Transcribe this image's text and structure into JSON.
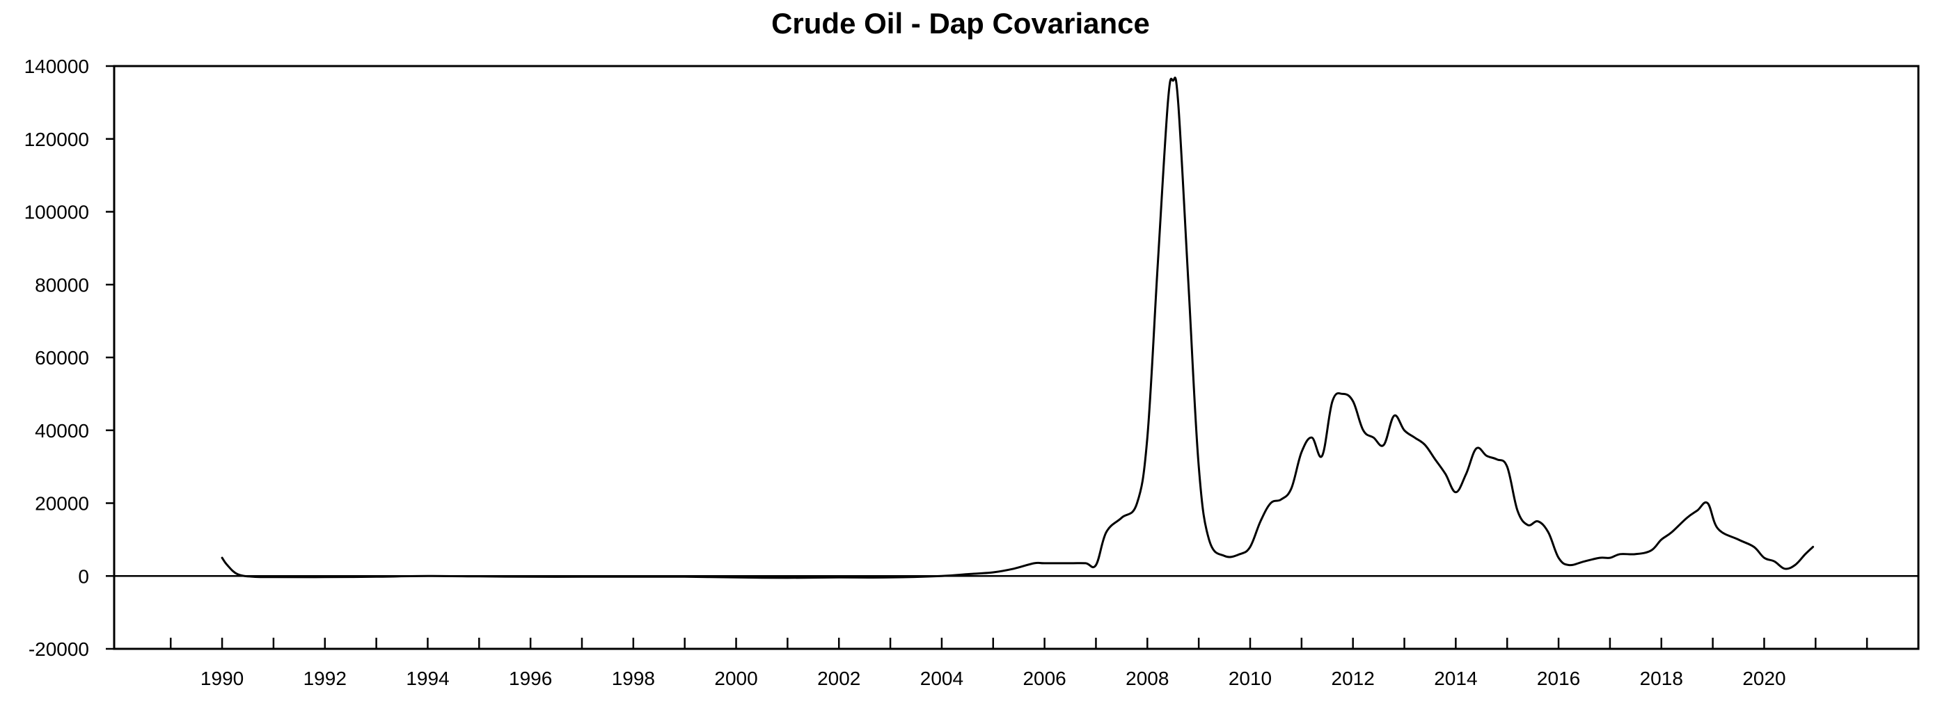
{
  "chart_data": {
    "type": "line",
    "title": "Crude Oil - Dap Covariance",
    "xlabel": "",
    "ylabel": "",
    "xlim": [
      1987.9,
      2023.0
    ],
    "ylim": [
      -20000,
      140000
    ],
    "grid": false,
    "legend": "none",
    "x_ticks": [
      1990,
      1992,
      1994,
      1996,
      1998,
      2000,
      2002,
      2004,
      2006,
      2008,
      2010,
      2012,
      2014,
      2016,
      2018,
      2020
    ],
    "x_tick_labels": [
      "1990",
      "1992",
      "1994",
      "1996",
      "1998",
      "2000",
      "2002",
      "2004",
      "2006",
      "2008",
      "2010",
      "2012",
      "2014",
      "2016",
      "2018",
      "2020"
    ],
    "y_ticks": [
      -20000,
      0,
      20000,
      40000,
      60000,
      80000,
      100000,
      120000,
      140000
    ],
    "y_tick_labels": [
      "-20000",
      "0",
      "20000",
      "40000",
      "60000",
      "80000",
      "100000",
      "120000",
      "140000"
    ],
    "line_color": "#000000",
    "series": [
      {
        "x": [
          1990.0,
          1990.1,
          1990.3,
          1990.6,
          1991.0,
          1992.0,
          1993.0,
          1994.0,
          1995.0,
          1996.0,
          1997.0,
          1998.0,
          1999.0,
          2000.0,
          2001.0,
          2002.0,
          2003.0,
          2004.0,
          2004.5,
          2005.0,
          2005.4,
          2005.8,
          2006.0,
          2006.5,
          2006.8,
          2007.0,
          2007.2,
          2007.5,
          2007.8,
          2008.0,
          2008.2,
          2008.4,
          2008.5,
          2008.6,
          2008.8,
          2009.0,
          2009.2,
          2009.5,
          2009.8,
          2010.0,
          2010.2,
          2010.4,
          2010.6,
          2010.8,
          2011.0,
          2011.2,
          2011.4,
          2011.6,
          2011.8,
          2012.0,
          2012.2,
          2012.4,
          2012.6,
          2012.8,
          2013.0,
          2013.2,
          2013.4,
          2013.6,
          2013.8,
          2014.0,
          2014.2,
          2014.4,
          2014.6,
          2014.8,
          2015.0,
          2015.2,
          2015.4,
          2015.6,
          2015.8,
          2016.0,
          2016.2,
          2016.5,
          2016.8,
          2017.0,
          2017.2,
          2017.5,
          2017.8,
          2018.0,
          2018.2,
          2018.5,
          2018.7,
          2018.9,
          2019.1,
          2019.5,
          2019.8,
          2020.0,
          2020.2,
          2020.4,
          2020.6,
          2020.8,
          2020.95
        ],
        "values": [
          5000,
          3000,
          500,
          -200,
          -300,
          -300,
          -200,
          0,
          -100,
          -200,
          -200,
          -200,
          -200,
          -400,
          -500,
          -400,
          -400,
          0,
          500,
          1000,
          2000,
          3500,
          3500,
          3500,
          3500,
          3000,
          12000,
          16000,
          20000,
          38000,
          85000,
          130000,
          136000,
          130000,
          80000,
          30000,
          10000,
          5500,
          6000,
          8000,
          15000,
          20000,
          21000,
          24000,
          34000,
          38000,
          33000,
          48000,
          50000,
          48000,
          40000,
          38000,
          36000,
          44000,
          40000,
          38000,
          36000,
          32000,
          28000,
          23000,
          28000,
          35000,
          33000,
          32000,
          30000,
          18000,
          14000,
          15000,
          12000,
          5000,
          3000,
          4000,
          5000,
          5000,
          6000,
          6000,
          7000,
          10000,
          12000,
          16000,
          18000,
          20000,
          13000,
          10000,
          8000,
          5000,
          4000,
          2000,
          3000,
          6000,
          8000
        ]
      }
    ]
  }
}
